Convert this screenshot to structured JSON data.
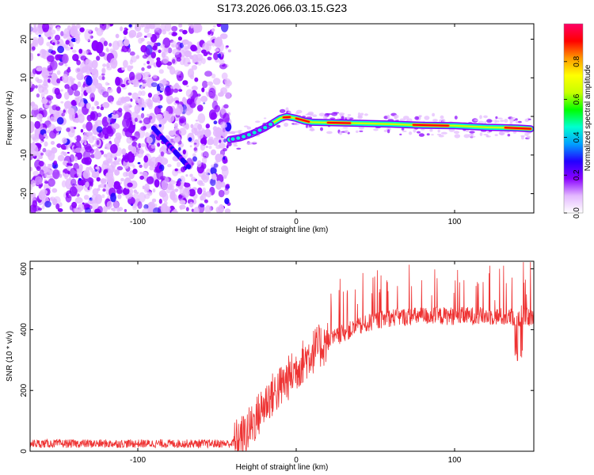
{
  "figure_title": "S173.2026.066.03.15.G23",
  "chart_data": [
    {
      "type": "heatmap",
      "xlabel": "Height of straight line (km)",
      "ylabel": "Frequency (Hz)",
      "xlim": [
        -168,
        150
      ],
      "ylim": [
        -25,
        24
      ],
      "xticks": [
        -100,
        0,
        100
      ],
      "yticks": [
        20,
        10,
        0,
        -10,
        -20
      ],
      "noise_region_x": [
        -168,
        -42
      ],
      "ridge": {
        "x": [
          -42,
          -35,
          -28,
          -20,
          -14,
          -10,
          -6,
          0,
          5,
          10,
          20,
          40,
          60,
          80,
          100,
          120,
          140,
          148
        ],
        "y": [
          -6,
          -5.5,
          -4.5,
          -3,
          -1.5,
          -0.5,
          0,
          -0.5,
          -1.2,
          -1.5,
          -1.6,
          -1.8,
          -2,
          -2.3,
          -2.4,
          -2.8,
          -3,
          -3.2
        ]
      },
      "hot_segments": [
        [
          -8,
          -4
        ],
        [
          0,
          8
        ],
        [
          20,
          34
        ],
        [
          74,
          96
        ],
        [
          132,
          148
        ]
      ],
      "diagonal_streak": {
        "x": [
          -90,
          -68
        ],
        "y": [
          -3,
          -13
        ]
      },
      "colorbar": {
        "label": "Normalized spectral amplitude",
        "range": [
          0,
          1
        ],
        "ticks": [
          "0.0",
          "0.2",
          "0.4",
          "0.6",
          "0.8"
        ],
        "colors": [
          "#ffffff",
          "#e3b8ff",
          "#8a00ff",
          "#2200ff",
          "#00a0ff",
          "#00ffd0",
          "#00ff00",
          "#c8ff00",
          "#ffff00",
          "#ff9900",
          "#ff0000",
          "#ff0066"
        ]
      }
    },
    {
      "type": "line",
      "xlabel": "Height of straight line (km)",
      "ylabel": "SNR (10 * v/v)",
      "xlim": [
        -168,
        150
      ],
      "ylim": [
        0,
        625
      ],
      "xticks": [
        -100,
        0,
        100
      ],
      "yticks": [
        0,
        200,
        400,
        600
      ],
      "color": "#ee3333",
      "trend": {
        "x": [
          -168,
          -120,
          -80,
          -40,
          -32,
          -25,
          -18,
          -10,
          0,
          6,
          12,
          20,
          30,
          40,
          50,
          60,
          80,
          100,
          120,
          140,
          150
        ],
        "y": [
          25,
          25,
          25,
          25,
          55,
          110,
          170,
          210,
          270,
          305,
          335,
          360,
          390,
          410,
          430,
          440,
          445,
          445,
          445,
          440,
          440
        ]
      }
    }
  ]
}
